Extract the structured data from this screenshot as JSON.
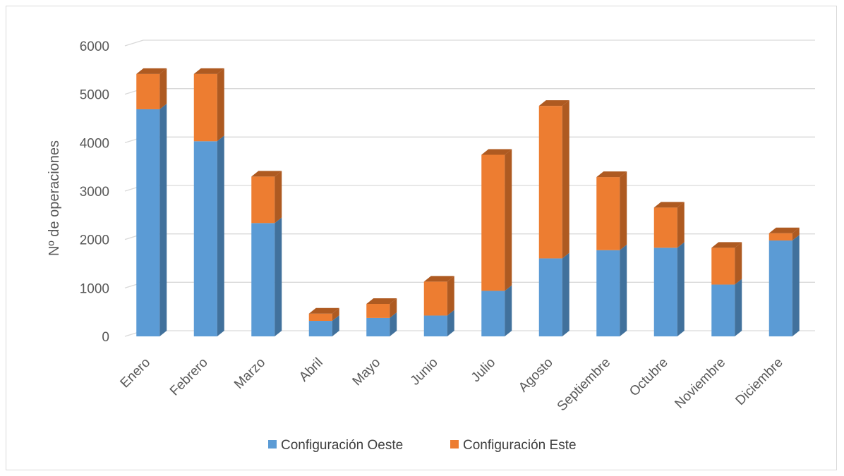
{
  "chart_data": {
    "type": "bar",
    "stacked": true,
    "style": "3d",
    "xlabel": "",
    "ylabel": "Nº de operaciones",
    "ylim": [
      0,
      6000
    ],
    "yticks": [
      0,
      1000,
      2000,
      3000,
      4000,
      5000,
      6000
    ],
    "grid": true,
    "legend_position": "bottom",
    "categories": [
      "Enero",
      "Febrero",
      "Marzo",
      "Abril",
      "Mayo",
      "Junio",
      "Julio",
      "Agosto",
      "Septiembre",
      "Octubre",
      "Noviembre",
      "Diciembre"
    ],
    "series": [
      {
        "name": "Configuración Oeste",
        "color": "#5b9bd5",
        "side_color": "#41719c",
        "values": [
          4690,
          4030,
          2340,
          320,
          380,
          430,
          940,
          1610,
          1780,
          1830,
          1070,
          1980
        ]
      },
      {
        "name": "Configuración Este",
        "color": "#ed7d31",
        "side_color": "#ae5a21",
        "values": [
          730,
          1390,
          960,
          150,
          290,
          700,
          2810,
          3150,
          1510,
          830,
          760,
          150
        ]
      }
    ]
  }
}
